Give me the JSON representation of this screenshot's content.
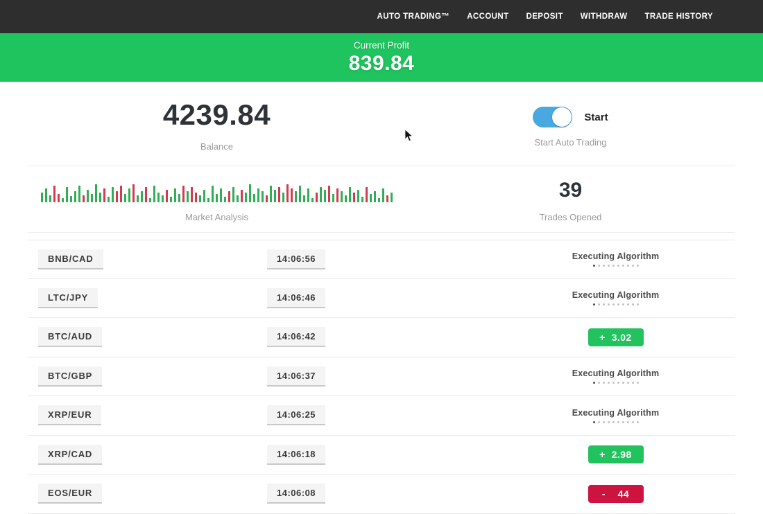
{
  "nav": {
    "items": [
      "AUTO TRADING™",
      "ACCOUNT",
      "DEPOSIT",
      "WITHDRAW",
      "TRADE HISTORY"
    ]
  },
  "profit_banner": {
    "label": "Current Profit",
    "value": "839.84",
    "bg_color": "#1fc45e"
  },
  "stats": {
    "balance_value": "4239.84",
    "balance_label": "Balance",
    "toggle_label": "Start",
    "toggle_caption": "Start Auto Trading",
    "toggle_state": "on",
    "toggle_color": "#47a9e0",
    "market_label": "Market Analysis",
    "trades_value": "39",
    "trades_label": "Trades Opened"
  },
  "market_analysis_bars": [
    "g14",
    "g20",
    "g10",
    "r24",
    "r12",
    "g6",
    "g22",
    "g9",
    "g16",
    "g24",
    "r10",
    "g18",
    "g12",
    "g26",
    "g14",
    "r20",
    "g8",
    "g22",
    "r16",
    "r24",
    "g12",
    "g20",
    "r26",
    "g10",
    "g16",
    "r22",
    "g6",
    "g24",
    "g14",
    "g10",
    "r18",
    "g8",
    "g20",
    "g12",
    "r24",
    "g16",
    "r22",
    "r14",
    "g10",
    "g18",
    "g6",
    "g24",
    "g12",
    "g20",
    "g8",
    "r16",
    "g22",
    "g10",
    "r18",
    "g14",
    "g26",
    "g12",
    "g20",
    "g16",
    "r10",
    "g24",
    "g18",
    "r22",
    "g14",
    "r26",
    "r20",
    "g16",
    "g24",
    "g10",
    "g20",
    "g6",
    "r14",
    "g22",
    "g18",
    "r24",
    "g12",
    "r20",
    "g16",
    "g10",
    "g22",
    "r14",
    "g18",
    "g8",
    "r22",
    "g12",
    "g16",
    "g6",
    "g20",
    "r10",
    "g14"
  ],
  "status_dots": {
    "total": 10,
    "active": 1
  },
  "trades": [
    {
      "pair": "BNB/CAD",
      "time": "14:06:56",
      "status": "executing",
      "status_text": "Executing Algorithm"
    },
    {
      "pair": "LTC/JPY",
      "time": "14:06:46",
      "status": "executing",
      "status_text": "Executing Algorithm"
    },
    {
      "pair": "BTC/AUD",
      "time": "14:06:42",
      "status": "profit",
      "result": "+  3.02"
    },
    {
      "pair": "BTC/GBP",
      "time": "14:06:37",
      "status": "executing",
      "status_text": "Executing Algorithm"
    },
    {
      "pair": "XRP/EUR",
      "time": "14:06:25",
      "status": "executing",
      "status_text": "Executing Algorithm"
    },
    {
      "pair": "XRP/CAD",
      "time": "14:06:18",
      "status": "profit",
      "result": "+  2.98"
    },
    {
      "pair": "EOS/EUR",
      "time": "14:06:08",
      "status": "loss",
      "result": "-    44"
    }
  ],
  "colors": {
    "nav_bg": "#2e2e2e",
    "profit_green": "#22c35e",
    "loss_red": "#cd1440",
    "chart_green": "#2fae54",
    "chart_red": "#d43a4e"
  }
}
